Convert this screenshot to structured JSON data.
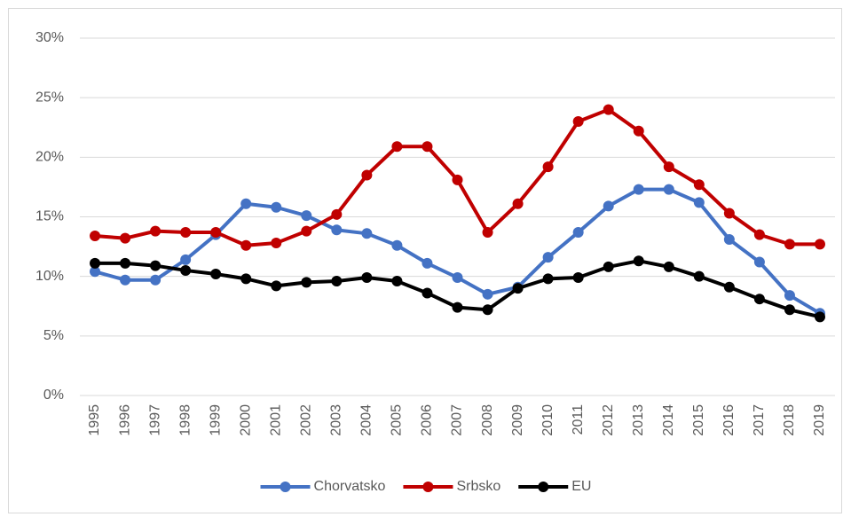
{
  "chart_data": {
    "type": "line",
    "categories": [
      "1995",
      "1996",
      "1997",
      "1998",
      "1999",
      "2000",
      "2001",
      "2002",
      "2003",
      "2004",
      "2005",
      "2006",
      "2007",
      "2008",
      "2009",
      "2010",
      "2011",
      "2012",
      "2013",
      "2014",
      "2015",
      "2016",
      "2017",
      "2018",
      "2019"
    ],
    "series": [
      {
        "name": "Chorvatsko",
        "color": "#4472c4",
        "values": [
          10.4,
          9.7,
          9.7,
          11.4,
          13.5,
          16.1,
          15.8,
          15.1,
          13.9,
          13.6,
          12.6,
          11.1,
          9.9,
          8.5,
          9.1,
          11.6,
          13.7,
          15.9,
          17.3,
          17.3,
          16.2,
          13.1,
          11.2,
          8.4,
          6.9
        ]
      },
      {
        "name": "Srbsko",
        "color": "#c00000",
        "values": [
          13.4,
          13.2,
          13.8,
          13.7,
          13.7,
          12.6,
          12.8,
          13.8,
          15.2,
          18.5,
          20.9,
          20.9,
          18.1,
          13.7,
          16.1,
          19.2,
          23.0,
          24.0,
          22.2,
          19.2,
          17.7,
          15.3,
          13.5,
          12.7,
          12.7
        ]
      },
      {
        "name": "EU",
        "color": "#000000",
        "values": [
          11.1,
          11.1,
          10.9,
          10.5,
          10.2,
          9.8,
          9.2,
          9.5,
          9.6,
          9.9,
          9.6,
          8.6,
          7.4,
          7.2,
          9.0,
          9.8,
          9.9,
          10.8,
          11.3,
          10.8,
          10.0,
          9.1,
          8.1,
          7.2,
          6.6
        ]
      }
    ],
    "ylim": [
      0,
      30
    ],
    "yticks": [
      {
        "value": 0,
        "label": "0%"
      },
      {
        "value": 5,
        "label": "5%"
      },
      {
        "value": 10,
        "label": "10%"
      },
      {
        "value": 15,
        "label": "15%"
      },
      {
        "value": 20,
        "label": "20%"
      },
      {
        "value": 25,
        "label": "25%"
      },
      {
        "value": 30,
        "label": "30%"
      }
    ],
    "grid": true,
    "legend": "bottom"
  }
}
